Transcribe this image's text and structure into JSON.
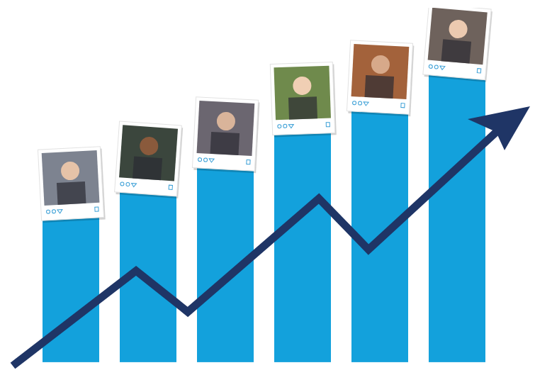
{
  "chart_data": {
    "type": "bar",
    "categories": [
      null,
      null,
      null,
      null,
      null,
      null
    ],
    "values": [
      210,
      245,
      280,
      330,
      360,
      410
    ],
    "color": "#13a1dc",
    "ylim": [
      0,
      500
    ],
    "tick_labels": false
  }
}
